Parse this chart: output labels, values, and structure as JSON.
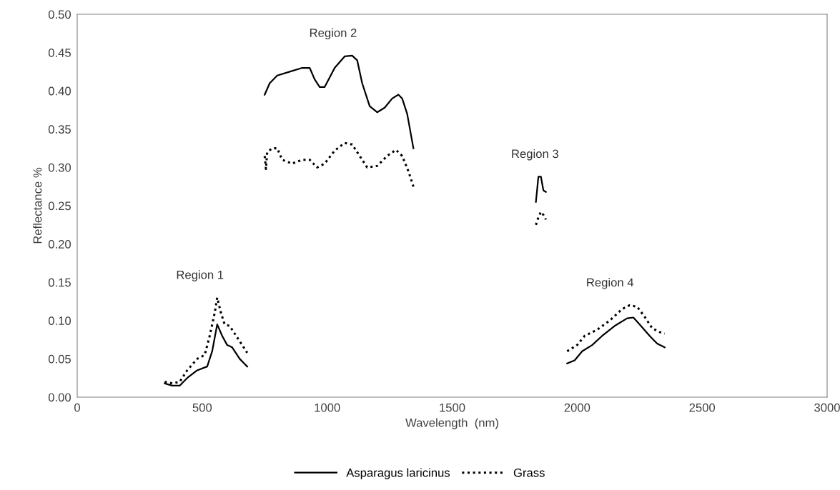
{
  "chart_data": {
    "type": "line",
    "xlabel": "Wavelength  (nm)",
    "ylabel": "Reflectance %",
    "xlim": [
      0,
      3000
    ],
    "xticks": [
      0,
      500,
      1000,
      1500,
      2000,
      2500,
      3000
    ],
    "ylim": [
      0,
      0.5
    ],
    "yticks": [
      {
        "value": 0,
        "label": "0.00"
      },
      {
        "value": 0.05,
        "label": "0.05"
      },
      {
        "value": 0.1,
        "label": "0.10"
      },
      {
        "value": 0.15,
        "label": "0.15"
      },
      {
        "value": 0.2,
        "label": "0.20"
      },
      {
        "value": 0.25,
        "label": "0.25"
      },
      {
        "value": 0.3,
        "label": "0.30"
      },
      {
        "value": 0.35,
        "label": "0.35"
      },
      {
        "value": 0.4,
        "label": "0.40"
      },
      {
        "value": 0.45,
        "label": "0.45"
      },
      {
        "value": 0.5,
        "label": "0.50"
      }
    ],
    "grid": false,
    "legend": "bottom",
    "marker": "none",
    "series": [
      {
        "name": "Asparagus laricinus",
        "color": "#000000",
        "line_style": "solid",
        "x": [
          350,
          380,
          410,
          440,
          480,
          520,
          540,
          560,
          580,
          600,
          620,
          650,
          680,
          null,
          750,
          770,
          800,
          850,
          900,
          930,
          950,
          970,
          990,
          1030,
          1070,
          1100,
          1120,
          1140,
          1170,
          1200,
          1230,
          1260,
          1285,
          1300,
          1320,
          1345,
          null,
          1835,
          1845,
          1855,
          1865,
          1875,
          null,
          1960,
          1990,
          2020,
          2060,
          2100,
          2150,
          2200,
          2225,
          2250,
          2290,
          2320,
          2350
        ],
        "values": [
          0.018,
          0.015,
          0.015,
          0.025,
          0.035,
          0.04,
          0.06,
          0.095,
          0.08,
          0.068,
          0.065,
          0.05,
          0.04,
          null,
          0.395,
          0.41,
          0.42,
          0.425,
          0.43,
          0.43,
          0.415,
          0.405,
          0.405,
          0.43,
          0.445,
          0.446,
          0.44,
          0.41,
          0.38,
          0.372,
          0.378,
          0.39,
          0.395,
          0.39,
          0.37,
          0.325,
          null,
          0.255,
          0.288,
          0.288,
          0.27,
          0.268,
          null,
          0.044,
          0.048,
          0.06,
          0.068,
          0.08,
          0.093,
          0.103,
          0.104,
          0.095,
          0.08,
          0.07,
          0.065
        ]
      },
      {
        "name": "Grass",
        "color": "#000000",
        "line_style": "dotted",
        "x": [
          350,
          380,
          410,
          440,
          480,
          510,
          530,
          550,
          560,
          575,
          590,
          610,
          640,
          680,
          null,
          750,
          755,
          760,
          780,
          800,
          820,
          860,
          900,
          930,
          960,
          990,
          1030,
          1070,
          1100,
          1130,
          1160,
          1200,
          1240,
          1275,
          1300,
          1325,
          1345,
          null,
          1835,
          1845,
          1855,
          1865,
          1875,
          null,
          1960,
          2000,
          2030,
          2080,
          2130,
          2180,
          2210,
          2240,
          2270,
          2300,
          2330,
          2350
        ],
        "values": [
          0.02,
          0.018,
          0.02,
          0.035,
          0.05,
          0.055,
          0.08,
          0.11,
          0.13,
          0.11,
          0.095,
          0.093,
          0.078,
          0.058,
          null,
          0.315,
          0.298,
          0.32,
          0.325,
          0.325,
          0.31,
          0.305,
          0.31,
          0.31,
          0.3,
          0.305,
          0.322,
          0.332,
          0.33,
          0.315,
          0.3,
          0.302,
          0.315,
          0.323,
          0.315,
          0.295,
          0.275,
          null,
          0.225,
          0.235,
          0.242,
          0.238,
          0.232,
          null,
          0.06,
          0.068,
          0.08,
          0.088,
          0.1,
          0.115,
          0.12,
          0.118,
          0.105,
          0.09,
          0.085,
          0.083
        ]
      }
    ],
    "annotations": [
      "Region 1",
      "Region 2",
      "Region 3",
      "Region 4"
    ]
  }
}
